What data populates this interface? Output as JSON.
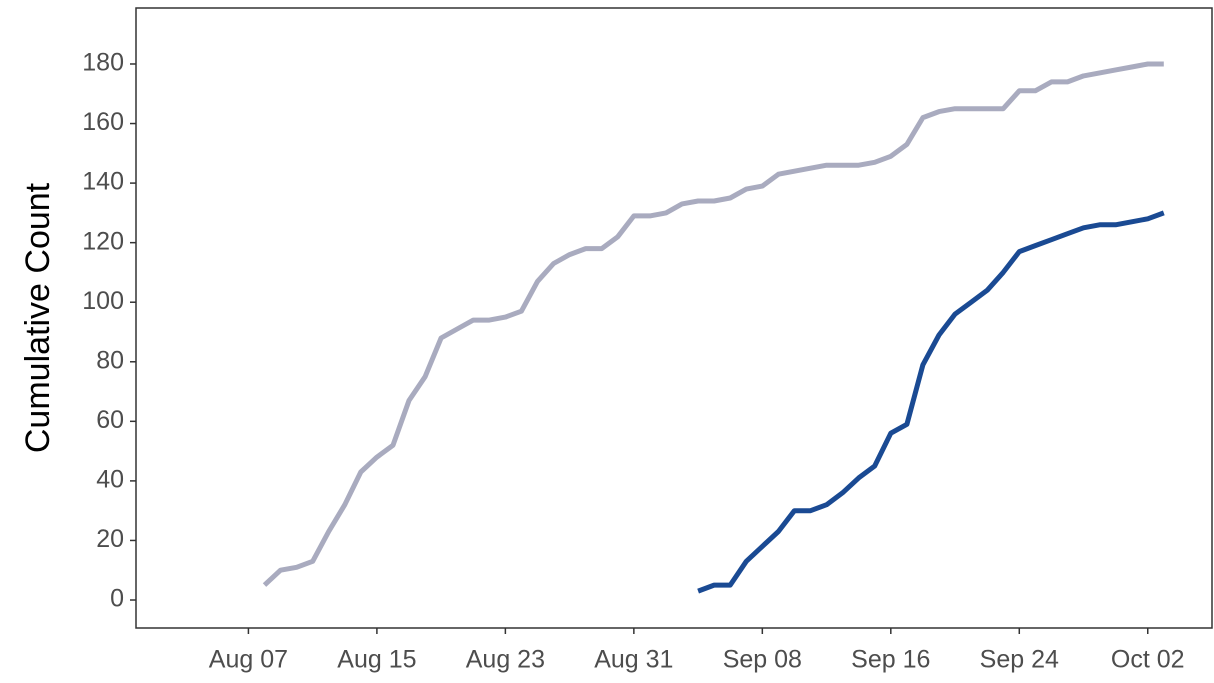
{
  "chart_data": {
    "type": "line",
    "y_label": "Cumulative Count",
    "xlim": [
      "Jul 31",
      "Oct 06"
    ],
    "xticks": [
      "Aug 07",
      "Aug 15",
      "Aug 23",
      "Aug 31",
      "Sep 08",
      "Sep 16",
      "Sep 24",
      "Oct 02"
    ],
    "ylim": [
      -9.4,
      198.8
    ],
    "yticks": [
      0,
      20,
      40,
      60,
      80,
      100,
      120,
      140,
      160,
      180
    ],
    "series": [
      {
        "color": "#a9abbf",
        "x": [
          "Aug 08",
          "Aug 09",
          "Aug 10",
          "Aug 11",
          "Aug 12",
          "Aug 13",
          "Aug 14",
          "Aug 15",
          "Aug 16",
          "Aug 17",
          "Aug 18",
          "Aug 19",
          "Aug 20",
          "Aug 21",
          "Aug 22",
          "Aug 23",
          "Aug 24",
          "Aug 25",
          "Aug 26",
          "Aug 27",
          "Aug 28",
          "Aug 29",
          "Aug 30",
          "Aug 31",
          "Sep 01",
          "Sep 02",
          "Sep 03",
          "Sep 04",
          "Sep 05",
          "Sep 06",
          "Sep 07",
          "Sep 08",
          "Sep 09",
          "Sep 10",
          "Sep 11",
          "Sep 12",
          "Sep 13",
          "Sep 14",
          "Sep 15",
          "Sep 16",
          "Sep 17",
          "Sep 18",
          "Sep 19",
          "Sep 20",
          "Sep 21",
          "Sep 22",
          "Sep 23",
          "Sep 24",
          "Sep 25",
          "Sep 26",
          "Sep 27",
          "Sep 28",
          "Sep 29",
          "Sep 30",
          "Oct 01",
          "Oct 02",
          "Oct 03"
        ],
        "values": [
          5,
          10,
          11,
          13,
          23,
          32,
          43,
          48,
          52,
          67,
          75,
          88,
          91,
          94,
          94,
          95,
          97,
          107,
          113,
          116,
          118,
          118,
          122,
          129,
          129,
          130,
          133,
          134,
          134,
          135,
          138,
          139,
          143,
          144,
          145,
          146,
          146,
          146,
          147,
          149,
          153,
          162,
          164,
          165,
          165,
          165,
          165,
          171,
          171,
          174,
          174,
          176,
          177,
          178,
          179,
          180,
          180
        ]
      },
      {
        "color": "#1a4a93",
        "x": [
          "Sep 04",
          "Sep 05",
          "Sep 06",
          "Sep 07",
          "Sep 08",
          "Sep 09",
          "Sep 10",
          "Sep 11",
          "Sep 12",
          "Sep 13",
          "Sep 14",
          "Sep 15",
          "Sep 16",
          "Sep 17",
          "Sep 18",
          "Sep 19",
          "Sep 20",
          "Sep 21",
          "Sep 22",
          "Sep 23",
          "Sep 24",
          "Sep 25",
          "Sep 26",
          "Sep 27",
          "Sep 28",
          "Sep 29",
          "Sep 30",
          "Oct 01",
          "Oct 02",
          "Oct 03"
        ],
        "values": [
          3,
          5,
          5,
          13,
          18,
          23,
          30,
          30,
          32,
          36,
          41,
          45,
          56,
          59,
          79,
          89,
          96,
          100,
          104,
          110,
          117,
          119,
          121,
          123,
          125,
          126,
          126,
          127,
          128,
          130
        ]
      }
    ]
  }
}
